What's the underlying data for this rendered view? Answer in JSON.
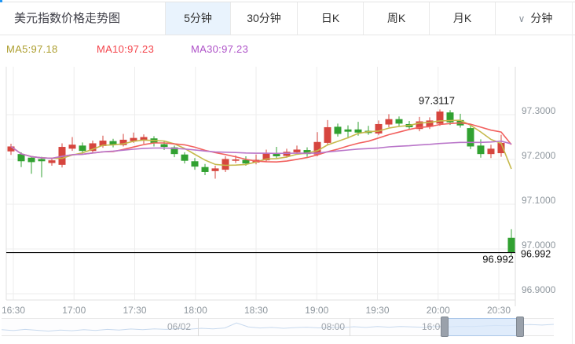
{
  "header": {
    "title": "美元指数价格走势图",
    "tabs": [
      {
        "id": "5min",
        "label": "5分钟",
        "active": true
      },
      {
        "id": "30min",
        "label": "30分钟",
        "active": false
      },
      {
        "id": "daily-k",
        "label": "日K",
        "active": false
      },
      {
        "id": "weekly-k",
        "label": "周K",
        "active": false
      },
      {
        "id": "monthly-k",
        "label": "月K",
        "active": false
      }
    ],
    "dropdown": {
      "id": "minute-dropdown",
      "label": "分钟",
      "icon": "chevron-down-icon",
      "glyph": "∨"
    }
  },
  "indicators": [
    {
      "id": "ma5",
      "label": "MA5:97.18",
      "color": "#ad9e2e"
    },
    {
      "id": "ma10",
      "label": "MA10:97.23",
      "color": "#f4444b"
    },
    {
      "id": "ma30",
      "label": "MA30:97.23",
      "color": "#ae52c8"
    }
  ],
  "chart_data": {
    "type": "candlestick",
    "interval": "5min",
    "title": "美元指数价格走势图",
    "ylim": [
      96.886,
      97.407
    ],
    "grid": true,
    "legend_position": "top-left",
    "y_ticks": [
      {
        "price": 97.3,
        "label": "97.3000"
      },
      {
        "price": 97.2,
        "label": "97.2000"
      },
      {
        "price": 97.1,
        "label": "97.1000"
      },
      {
        "price": 97.0,
        "label": "97.0000"
      },
      {
        "price": 96.9,
        "label": "96.9000"
      }
    ],
    "x_tick_labels": [
      "16:30",
      "17:00",
      "17:30",
      "18:00",
      "18:30",
      "19:00",
      "19:30",
      "20:00",
      "20:30"
    ],
    "times": [
      "16:30",
      "16:35",
      "16:40",
      "16:45",
      "16:50",
      "16:55",
      "17:00",
      "17:05",
      "17:10",
      "17:15",
      "17:20",
      "17:25",
      "17:30",
      "17:35",
      "17:40",
      "17:45",
      "17:50",
      "17:55",
      "18:00",
      "18:05",
      "18:10",
      "18:15",
      "18:20",
      "18:25",
      "18:30",
      "18:35",
      "18:40",
      "18:45",
      "18:50",
      "18:55",
      "19:00",
      "19:05",
      "19:10",
      "19:15",
      "19:20",
      "19:25",
      "19:30",
      "19:35",
      "19:40",
      "19:45",
      "19:50",
      "19:55",
      "20:00",
      "20:05",
      "20:10",
      "20:15",
      "20:20",
      "20:25",
      "20:30",
      "20:35"
    ],
    "candles": [
      [
        97.218,
        97.235,
        97.21,
        97.229
      ],
      [
        97.212,
        97.216,
        97.183,
        97.196
      ],
      [
        97.204,
        97.208,
        97.168,
        97.194
      ],
      [
        97.201,
        97.206,
        97.16,
        97.196
      ],
      [
        97.192,
        97.203,
        97.186,
        97.198
      ],
      [
        97.188,
        97.236,
        97.182,
        97.228
      ],
      [
        97.224,
        97.25,
        97.219,
        97.233
      ],
      [
        97.231,
        97.238,
        97.213,
        97.219
      ],
      [
        97.219,
        97.242,
        97.215,
        97.236
      ],
      [
        97.23,
        97.253,
        97.226,
        97.242
      ],
      [
        97.241,
        97.246,
        97.227,
        97.233
      ],
      [
        97.232,
        97.257,
        97.229,
        97.244
      ],
      [
        97.241,
        97.26,
        97.237,
        97.248
      ],
      [
        97.242,
        97.256,
        97.235,
        97.25
      ],
      [
        97.247,
        97.252,
        97.229,
        97.236
      ],
      [
        97.234,
        97.241,
        97.221,
        97.228
      ],
      [
        97.227,
        97.231,
        97.205,
        97.212
      ],
      [
        97.211,
        97.216,
        97.191,
        97.197
      ],
      [
        97.196,
        97.203,
        97.177,
        97.184
      ],
      [
        97.183,
        97.19,
        97.165,
        97.172
      ],
      [
        97.174,
        97.186,
        97.157,
        97.18
      ],
      [
        97.177,
        97.207,
        97.172,
        97.201
      ],
      [
        97.197,
        97.209,
        97.192,
        97.2
      ],
      [
        97.199,
        97.207,
        97.186,
        97.191
      ],
      [
        97.193,
        97.211,
        97.189,
        97.199
      ],
      [
        97.198,
        97.222,
        97.194,
        97.213
      ],
      [
        97.214,
        97.228,
        97.203,
        97.207
      ],
      [
        97.208,
        97.224,
        97.204,
        97.217
      ],
      [
        97.216,
        97.231,
        97.211,
        97.222
      ],
      [
        97.221,
        97.227,
        97.206,
        97.212
      ],
      [
        97.211,
        97.261,
        97.207,
        97.239
      ],
      [
        97.237,
        97.288,
        97.233,
        97.272
      ],
      [
        97.273,
        97.28,
        97.251,
        97.257
      ],
      [
        97.267,
        97.276,
        97.247,
        97.262
      ],
      [
        97.267,
        97.284,
        97.253,
        97.26
      ],
      [
        97.264,
        97.275,
        97.255,
        97.259
      ],
      [
        97.258,
        97.287,
        97.254,
        97.279
      ],
      [
        97.278,
        97.301,
        97.272,
        97.29
      ],
      [
        97.29,
        97.296,
        97.274,
        97.28
      ],
      [
        97.279,
        97.286,
        97.267,
        97.272
      ],
      [
        97.268,
        97.295,
        97.263,
        97.285
      ],
      [
        97.273,
        97.294,
        97.268,
        97.287
      ],
      [
        97.28,
        97.3117,
        97.275,
        97.307
      ],
      [
        97.305,
        97.31,
        97.277,
        97.283
      ],
      [
        97.288,
        97.302,
        97.271,
        97.276
      ],
      [
        97.27,
        97.275,
        97.223,
        97.229
      ],
      [
        97.231,
        97.245,
        97.204,
        97.212
      ],
      [
        97.212,
        97.233,
        97.203,
        97.224
      ],
      [
        97.214,
        97.255,
        97.206,
        97.237
      ],
      [
        97.025,
        97.044,
        96.986,
        96.992
      ]
    ],
    "ma_periods": [
      5,
      10,
      30
    ],
    "peak_annotation": {
      "text": "97.3117",
      "price": 97.3117,
      "time": "20:00"
    },
    "current_price": {
      "text": "96.992",
      "value": 96.992
    },
    "colors": {
      "up": "#d6453e",
      "down": "#31a131",
      "ma5_line": "#c6b94c",
      "ma10_line": "#f2605e",
      "ma30_line": "#b975c9",
      "current_line": "#111111",
      "grid": "#ededed",
      "axis_text": "#8f979e",
      "active_tab_bg": "#e9f3fd"
    }
  },
  "navigator": {
    "labels": [
      "06/02",
      "08:00",
      "16:00"
    ],
    "spark": [
      0.4,
      0.34,
      0.42,
      0.36,
      0.3,
      0.38,
      0.33,
      0.4,
      0.35,
      0.42,
      0.38,
      0.45,
      0.4,
      0.46,
      0.42,
      0.48,
      0.44,
      0.5,
      0.46,
      0.52,
      0.88,
      0.6,
      0.52,
      0.56,
      0.5,
      0.55,
      0.58,
      0.53,
      0.58,
      0.55,
      0.61,
      0.56,
      0.62,
      0.58,
      0.63,
      0.6,
      0.57,
      0.62,
      0.6,
      0.64,
      0.62,
      0.66,
      0.7,
      0.68,
      0.73,
      0.76,
      0.73,
      0.78
    ]
  }
}
